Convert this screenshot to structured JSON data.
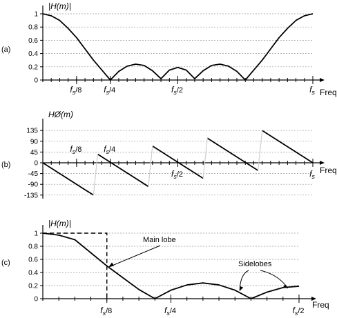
{
  "chart_data": [
    {
      "id": "a",
      "panel_label": "(a)",
      "type": "line",
      "ylabel": "|H(m)|",
      "xlabel": "Freq",
      "ylim": [
        0,
        1
      ],
      "yticks": [
        "0",
        "0.2",
        "0.4",
        "0.6",
        "0.8",
        "1"
      ],
      "ytick_values": [
        0,
        0.2,
        0.4,
        0.6,
        0.8,
        1
      ],
      "x_range": [
        0,
        32
      ],
      "x_minor_tick_step": 1,
      "xticks": [
        {
          "x": 4,
          "base": "f",
          "sub": "s",
          "suffix": "/8"
        },
        {
          "x": 8,
          "base": "f",
          "sub": "s",
          "suffix": "/4"
        },
        {
          "x": 16,
          "base": "f",
          "sub": "s",
          "suffix": "/2"
        },
        {
          "x": 32,
          "base": "f",
          "sub": "s",
          "suffix": ""
        }
      ],
      "grid": true,
      "series": [
        {
          "x": [
            0,
            1,
            2,
            3,
            4,
            5,
            6,
            7,
            8,
            9,
            10,
            11,
            12,
            13,
            14,
            15,
            16,
            17,
            18,
            19,
            20,
            21,
            22,
            23,
            24,
            25,
            26,
            27,
            28,
            29,
            30,
            31,
            32
          ],
          "y": [
            1,
            0.97,
            0.9,
            0.78,
            0.64,
            0.47,
            0.3,
            0.15,
            0,
            0.13,
            0.21,
            0.24,
            0.22,
            0.14,
            0.02,
            0.15,
            0.19,
            0.15,
            0.02,
            0.14,
            0.22,
            0.24,
            0.21,
            0.13,
            0,
            0.15,
            0.3,
            0.47,
            0.64,
            0.78,
            0.9,
            0.97,
            1
          ]
        }
      ]
    },
    {
      "id": "b",
      "panel_label": "(b)",
      "type": "line",
      "ylabel": "HØ(m)",
      "xlabel": "Freq",
      "ylim": [
        -150,
        150
      ],
      "yticks": [
        "135",
        "90",
        "45",
        "0",
        "-45",
        "-90",
        "-135"
      ],
      "ytick_values": [
        135,
        90,
        45,
        0,
        -45,
        -90,
        -135
      ],
      "x_range": [
        0,
        32
      ],
      "x_minor_tick_step": 1,
      "xticks": [
        {
          "x": 4,
          "base": "f",
          "sub": "s",
          "suffix": "/8",
          "place": "above"
        },
        {
          "x": 8,
          "base": "f",
          "sub": "s",
          "suffix": "/4",
          "place": "above"
        },
        {
          "x": 16,
          "base": "f",
          "sub": "s",
          "suffix": "/2",
          "place": "below"
        },
        {
          "x": 32,
          "base": "f",
          "sub": "s",
          "suffix": "",
          "place": "below"
        }
      ],
      "grid": true,
      "segments": [
        {
          "x": [
            0,
            6
          ],
          "y": [
            0,
            -135
          ]
        },
        {
          "x": [
            6.5,
            12.5
          ],
          "y": [
            36,
            -99
          ]
        },
        {
          "x": [
            13,
            19
          ],
          "y": [
            70,
            -65
          ]
        },
        {
          "x": [
            19.5,
            25.5
          ],
          "y": [
            103,
            -32
          ]
        },
        {
          "x": [
            26,
            32
          ],
          "y": [
            135,
            0
          ]
        }
      ],
      "jumps": [
        {
          "x": [
            6,
            6.5
          ],
          "y": [
            -135,
            36
          ]
        },
        {
          "x": [
            12.5,
            13
          ],
          "y": [
            -99,
            70
          ]
        },
        {
          "x": [
            19,
            19.5
          ],
          "y": [
            -65,
            103
          ]
        },
        {
          "x": [
            25.5,
            26
          ],
          "y": [
            -32,
            135
          ]
        }
      ]
    },
    {
      "id": "c",
      "panel_label": "(c)",
      "type": "line",
      "ylabel": "|H(m)|",
      "xlabel": "Freq",
      "ylim": [
        0,
        1
      ],
      "yticks": [
        "0",
        "0.2",
        "0.4",
        "0.6",
        "0.8",
        "1"
      ],
      "ytick_values": [
        0,
        0.2,
        0.4,
        0.6,
        0.8,
        1
      ],
      "x_range": [
        0,
        16
      ],
      "x_minor_tick_step": 1,
      "xticks": [
        {
          "x": 4,
          "base": "f",
          "sub": "s",
          "suffix": "/8"
        },
        {
          "x": 8,
          "base": "f",
          "sub": "s",
          "suffix": "/4"
        },
        {
          "x": 16,
          "base": "f",
          "sub": "s",
          "suffix": "/2"
        }
      ],
      "grid": true,
      "series": [
        {
          "x": [
            0,
            1,
            2,
            3,
            4,
            5,
            6,
            7,
            8,
            9,
            10,
            11,
            12,
            13,
            14,
            15,
            16
          ],
          "y": [
            1,
            0.97,
            0.9,
            0.7,
            0.5,
            0.32,
            0.14,
            0,
            0.13,
            0.21,
            0.24,
            0.21,
            0.13,
            0,
            0.1,
            0.17,
            0.19
          ]
        }
      ],
      "dashed_box": {
        "x_end": 4,
        "y": 1
      },
      "annotations": [
        {
          "text": "Main lobe",
          "target": {
            "x": 4.1,
            "y": 0.48
          }
        },
        {
          "text": "Sidelobes",
          "targets": [
            {
              "x": 12.3,
              "y": 0.12
            },
            {
              "x": 15.3,
              "y": 0.16
            }
          ]
        }
      ]
    }
  ]
}
